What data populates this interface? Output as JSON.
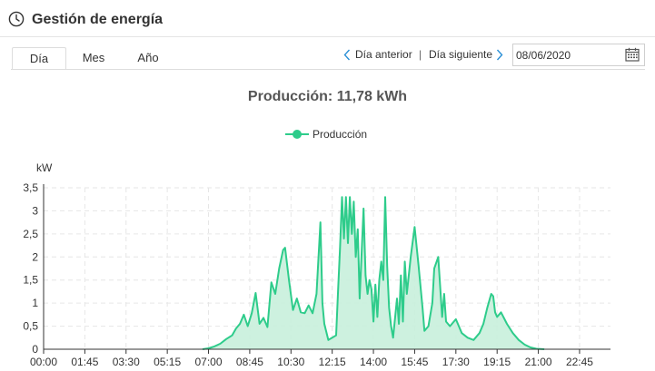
{
  "header": {
    "title": "Gestión de energía",
    "icon": "clock-icon"
  },
  "tabs": [
    {
      "label": "Día",
      "active": true
    },
    {
      "label": "Mes",
      "active": false
    },
    {
      "label": "Año",
      "active": false
    }
  ],
  "nav": {
    "prev_label": "Día anterior",
    "separator": "|",
    "next_label": "Día siguiente"
  },
  "date_field": {
    "value": "08/06/2020"
  },
  "colors": {
    "series": "#2ecc8b",
    "fill": "#c8f0dc",
    "grid": "#e6e6e6"
  },
  "chart_data": {
    "type": "area",
    "title": "Producción: 11,78 kWh",
    "ylabel": "kW",
    "xlabel": "",
    "ylim": [
      0,
      3.5
    ],
    "yticks": [
      0,
      0.5,
      1,
      1.5,
      2,
      2.5,
      3,
      3.5
    ],
    "ytick_labels": [
      "0",
      "0,5",
      "1",
      "1,5",
      "2",
      "2,5",
      "3",
      "3,5"
    ],
    "xtick_labels": [
      "00:00",
      "01:45",
      "03:30",
      "05:15",
      "07:00",
      "08:45",
      "10:30",
      "12:15",
      "14:00",
      "15:45",
      "17:30",
      "19:15",
      "21:00",
      "22:45"
    ],
    "grid": true,
    "legend_position": "top-center",
    "series": [
      {
        "name": "Producción",
        "points": [
          [
            "06:45",
            0
          ],
          [
            "07:00",
            0.02
          ],
          [
            "07:15",
            0.06
          ],
          [
            "07:30",
            0.12
          ],
          [
            "07:45",
            0.22
          ],
          [
            "08:00",
            0.3
          ],
          [
            "08:10",
            0.45
          ],
          [
            "08:20",
            0.55
          ],
          [
            "08:30",
            0.75
          ],
          [
            "08:40",
            0.5
          ],
          [
            "08:50",
            0.78
          ],
          [
            "09:00",
            1.22
          ],
          [
            "09:10",
            0.55
          ],
          [
            "09:20",
            0.68
          ],
          [
            "09:30",
            0.48
          ],
          [
            "09:40",
            1.45
          ],
          [
            "09:50",
            1.2
          ],
          [
            "10:00",
            1.75
          ],
          [
            "10:10",
            2.15
          ],
          [
            "10:15",
            2.2
          ],
          [
            "10:25",
            1.5
          ],
          [
            "10:35",
            0.85
          ],
          [
            "10:45",
            1.1
          ],
          [
            "10:55",
            0.8
          ],
          [
            "11:05",
            0.78
          ],
          [
            "11:15",
            0.95
          ],
          [
            "11:25",
            0.78
          ],
          [
            "11:35",
            1.2
          ],
          [
            "11:45",
            2.75
          ],
          [
            "11:50",
            1.0
          ],
          [
            "11:55",
            0.55
          ],
          [
            "12:05",
            0.2
          ],
          [
            "12:15",
            0.25
          ],
          [
            "12:25",
            0.3
          ],
          [
            "12:30",
            1.3
          ],
          [
            "12:35",
            2.2
          ],
          [
            "12:40",
            3.3
          ],
          [
            "12:45",
            2.4
          ],
          [
            "12:50",
            3.3
          ],
          [
            "12:55",
            2.3
          ],
          [
            "13:00",
            3.3
          ],
          [
            "13:05",
            2.5
          ],
          [
            "13:10",
            3.2
          ],
          [
            "13:15",
            2.0
          ],
          [
            "13:20",
            2.6
          ],
          [
            "13:25",
            1.1
          ],
          [
            "13:30",
            2.1
          ],
          [
            "13:35",
            3.05
          ],
          [
            "13:40",
            1.6
          ],
          [
            "13:45",
            1.2
          ],
          [
            "13:50",
            1.5
          ],
          [
            "13:55",
            1.3
          ],
          [
            "14:00",
            0.6
          ],
          [
            "14:05",
            1.4
          ],
          [
            "14:10",
            0.7
          ],
          [
            "14:15",
            1.5
          ],
          [
            "14:20",
            1.9
          ],
          [
            "14:25",
            1.5
          ],
          [
            "14:30",
            3.3
          ],
          [
            "14:35",
            1.8
          ],
          [
            "14:40",
            0.9
          ],
          [
            "14:45",
            0.5
          ],
          [
            "14:50",
            0.25
          ],
          [
            "15:00",
            1.1
          ],
          [
            "15:05",
            0.55
          ],
          [
            "15:10",
            1.6
          ],
          [
            "15:15",
            0.6
          ],
          [
            "15:20",
            1.9
          ],
          [
            "15:25",
            1.2
          ],
          [
            "15:35",
            2.0
          ],
          [
            "15:45",
            2.65
          ],
          [
            "15:55",
            1.8
          ],
          [
            "16:05",
            0.9
          ],
          [
            "16:10",
            0.4
          ],
          [
            "16:20",
            0.5
          ],
          [
            "16:30",
            1.0
          ],
          [
            "16:35",
            1.75
          ],
          [
            "16:45",
            2.0
          ],
          [
            "16:55",
            0.7
          ],
          [
            "17:00",
            1.2
          ],
          [
            "17:05",
            0.6
          ],
          [
            "17:15",
            0.5
          ],
          [
            "17:30",
            0.65
          ],
          [
            "17:45",
            0.35
          ],
          [
            "18:00",
            0.25
          ],
          [
            "18:15",
            0.2
          ],
          [
            "18:30",
            0.35
          ],
          [
            "18:40",
            0.55
          ],
          [
            "18:50",
            0.9
          ],
          [
            "19:00",
            1.2
          ],
          [
            "19:05",
            1.15
          ],
          [
            "19:10",
            0.8
          ],
          [
            "19:15",
            0.7
          ],
          [
            "19:25",
            0.8
          ],
          [
            "19:40",
            0.55
          ],
          [
            "19:55",
            0.35
          ],
          [
            "20:10",
            0.2
          ],
          [
            "20:25",
            0.1
          ],
          [
            "20:40",
            0.04
          ],
          [
            "20:55",
            0.01
          ],
          [
            "21:15",
            0
          ]
        ]
      }
    ]
  }
}
